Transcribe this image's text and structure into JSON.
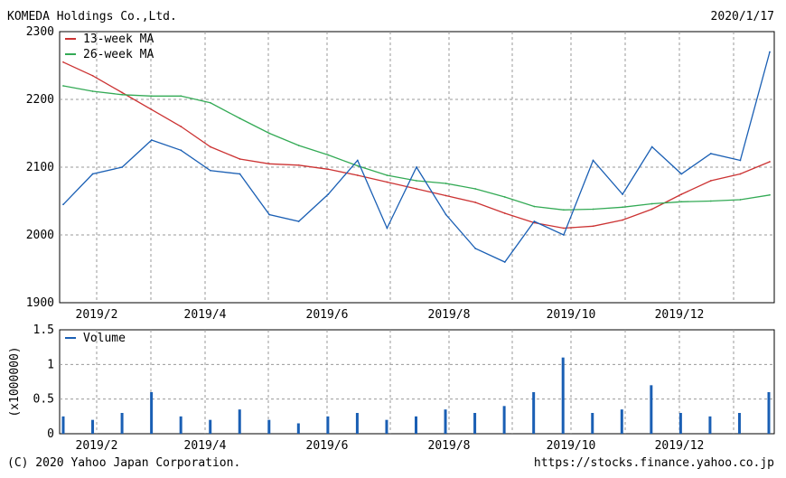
{
  "header": {
    "title": "KOMEDA Holdings Co.,Ltd.",
    "date": "2020/1/17"
  },
  "footer": {
    "copyright": "(C) 2020 Yahoo Japan Corporation.",
    "url": "https://stocks.finance.yahoo.co.jp"
  },
  "colors": {
    "price": "#1a5fb4",
    "ma13": "#cc3333",
    "ma26": "#33aa55",
    "volume": "#1a5fb4",
    "grid": "#999999"
  },
  "chart_data": [
    {
      "type": "line",
      "title": "",
      "xlabel": "",
      "ylabel": "",
      "ylim": [
        1900,
        2300
      ],
      "yticks": [
        "2300",
        "2200",
        "2100",
        "2000",
        "1900"
      ],
      "xticks": [
        "2019/2",
        "2019/4",
        "2019/6",
        "2019/8",
        "2019/10",
        "2019/12"
      ],
      "grid": true,
      "legend": "top-left",
      "x_dates": [
        "2019/1/18",
        "2019/2/1",
        "2019/2/15",
        "2019/3/1",
        "2019/3/15",
        "2019/4/1",
        "2019/4/15",
        "2019/5/1",
        "2019/5/15",
        "2019/6/1",
        "2019/6/15",
        "2019/7/1",
        "2019/7/15",
        "2019/8/1",
        "2019/8/15",
        "2019/9/1",
        "2019/9/15",
        "2019/10/1",
        "2019/10/15",
        "2019/11/1",
        "2019/11/15",
        "2019/12/1",
        "2019/12/15",
        "2020/1/1",
        "2020/1/17"
      ],
      "series": [
        {
          "name": "13-week MA",
          "values": [
            2255,
            2235,
            2210,
            2185,
            2160,
            2130,
            2112,
            2105,
            2103,
            2097,
            2088,
            2078,
            2068,
            2058,
            2048,
            2032,
            2018,
            2010,
            2013,
            2022,
            2038,
            2060,
            2080,
            2090,
            2108
          ]
        },
        {
          "name": "26-week MA",
          "values": [
            2220,
            2212,
            2207,
            2205,
            2205,
            2195,
            2172,
            2150,
            2132,
            2118,
            2102,
            2088,
            2080,
            2076,
            2068,
            2056,
            2042,
            2037,
            2038,
            2041,
            2046,
            2049,
            2050,
            2052,
            2059
          ]
        },
        {
          "name": "",
          "values": [
            2045,
            2090,
            2100,
            2140,
            2125,
            2095,
            2090,
            2030,
            2020,
            2060,
            2110,
            2010,
            2100,
            2030,
            1980,
            1960,
            2020,
            2000,
            2110,
            2060,
            2130,
            2090,
            2120,
            2110,
            2270
          ]
        }
      ]
    },
    {
      "type": "bar",
      "title": "",
      "xlabel": "",
      "ylabel": "(x1000000)",
      "ylim": [
        0,
        1.5
      ],
      "yticks": [
        "1.5",
        "1",
        "0.5",
        "0"
      ],
      "xticks": [
        "2019/2",
        "2019/4",
        "2019/6",
        "2019/8",
        "2019/10",
        "2019/12"
      ],
      "grid": true,
      "legend": "top-left",
      "series": [
        {
          "name": "Volume",
          "values": [
            0.25,
            0.2,
            0.3,
            0.6,
            0.25,
            0.2,
            0.35,
            0.2,
            0.15,
            0.25,
            0.3,
            0.2,
            0.25,
            0.35,
            0.3,
            0.4,
            0.6,
            1.1,
            0.3,
            0.35,
            0.7,
            0.3,
            0.25,
            0.3,
            0.6
          ]
        }
      ]
    }
  ]
}
